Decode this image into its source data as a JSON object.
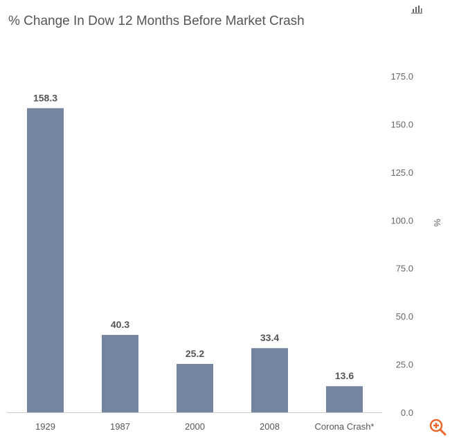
{
  "chart_data": {
    "type": "bar",
    "title": "% Change In Dow 12 Months Before Market Crash",
    "categories": [
      "1929",
      "1987",
      "2000",
      "2008",
      "Corona Crash*"
    ],
    "values": [
      158.3,
      40.3,
      25.2,
      33.4,
      13.6
    ],
    "data_labels": [
      "158.3",
      "40.3",
      "25.2",
      "33.4",
      "13.6"
    ],
    "xlabel": "",
    "ylabel": "%",
    "ylim": [
      0,
      175
    ],
    "yticks": [
      "0.0",
      "25.0",
      "50.0",
      "75.0",
      "100.0",
      "125.0",
      "150.0",
      "175.0"
    ],
    "y_axis_side": "right",
    "grid": false,
    "bar_color": "#7584a0"
  },
  "toolbar": {
    "chart_icon": "bar-chart-icon",
    "zoom_icon": "zoom-in-icon",
    "zoom_color": "#e8662a"
  }
}
